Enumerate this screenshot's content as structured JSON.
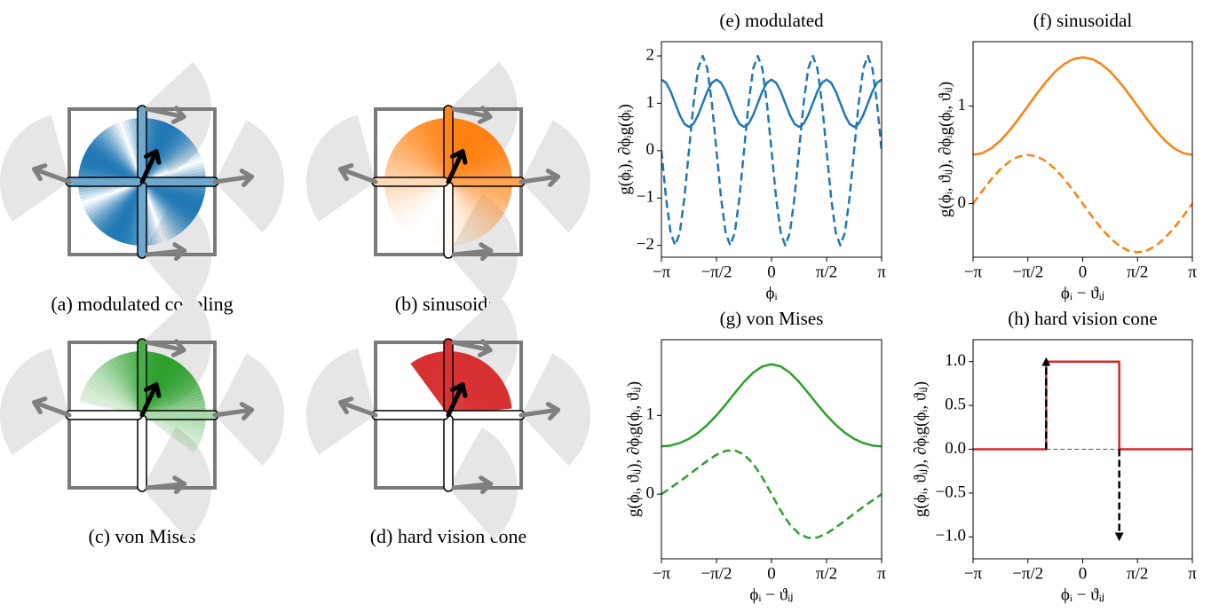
{
  "diagrams": [
    {
      "caption": "(a) modulated coupling"
    },
    {
      "caption": "(b) sinusoidal"
    },
    {
      "caption": "(c) von Mises"
    },
    {
      "caption": "(d) hard vision cone"
    }
  ],
  "chart_data": [
    {
      "type": "line",
      "title": "(e) modulated",
      "xlabel": "ϕᵢ",
      "ylabel": "g(ϕᵢ),  ∂ϕᵢg(ϕᵢ)",
      "x": [
        -3.1416,
        -3.0107,
        -2.8798,
        -2.7489,
        -2.618,
        -2.4871,
        -2.3562,
        -2.2253,
        -2.0944,
        -1.9635,
        -1.8326,
        -1.7017,
        -1.5708,
        -1.4399,
        -1.309,
        -1.1781,
        -1.0472,
        -0.9163,
        -0.7854,
        -0.6545,
        -0.5236,
        -0.3927,
        -0.2618,
        -0.1309,
        0,
        0.1309,
        0.2618,
        0.3927,
        0.5236,
        0.6545,
        0.7854,
        0.9163,
        1.0472,
        1.1781,
        1.309,
        1.4399,
        1.5708,
        1.7017,
        1.8326,
        1.9635,
        2.0944,
        2.2253,
        2.3562,
        2.4871,
        2.618,
        2.7489,
        2.8798,
        3.0107,
        3.1416
      ],
      "xlim": [
        -3.1416,
        3.1416
      ],
      "xticks": [
        {
          "value": -3.1416,
          "label": "−π"
        },
        {
          "value": -1.5708,
          "label": "−π/2"
        },
        0,
        {
          "value": 1.5708,
          "label": "π/2"
        },
        {
          "value": 3.1416,
          "label": "π"
        }
      ],
      "ylim": [
        -2.25,
        2.3
      ],
      "yticks": [
        {
          "value": -2,
          "label": "−2"
        },
        {
          "value": -1,
          "label": "−1"
        },
        0,
        1,
        2
      ],
      "series": [
        {
          "color": "#1f77b4",
          "dashed": false,
          "values": [
            1.5,
            1.433,
            1.25,
            1,
            0.75,
            0.567,
            0.5,
            0.567,
            0.75,
            1,
            1.25,
            1.433,
            1.5,
            1.433,
            1.25,
            1,
            0.75,
            0.567,
            0.5,
            0.567,
            0.75,
            1,
            1.25,
            1.433,
            1.5,
            1.433,
            1.25,
            1,
            0.75,
            0.567,
            0.5,
            0.567,
            0.75,
            1,
            1.25,
            1.433,
            1.5,
            1.433,
            1.25,
            1,
            0.75,
            0.567,
            0.5,
            0.567,
            0.75,
            1,
            1.25,
            1.433,
            1.5
          ]
        },
        {
          "color": "#1f77b4",
          "dashed": true,
          "values": [
            0,
            -1,
            -1.732,
            -2,
            -1.732,
            -1,
            0,
            1,
            1.732,
            2,
            1.732,
            1,
            0,
            -1,
            -1.732,
            -2,
            -1.732,
            -1,
            0,
            1,
            1.732,
            2,
            1.732,
            1,
            0,
            -1,
            -1.732,
            -2,
            -1.732,
            -1,
            0,
            1,
            1.732,
            2,
            1.732,
            1,
            0,
            -1,
            -1.732,
            -2,
            -1.732,
            -1,
            0,
            1,
            1.732,
            2,
            1.732,
            1,
            0
          ]
        }
      ]
    },
    {
      "type": "line",
      "title": "(f) sinusoidal",
      "xlabel": "ϕᵢ − ϑᵢⱼ",
      "ylabel": "g(ϕᵢ, ϑᵢⱼ),  ∂ϕᵢg(ϕᵢ, ϑᵢⱼ)",
      "x": [
        -3.1416,
        -2.8798,
        -2.618,
        -2.3562,
        -2.0944,
        -1.8326,
        -1.5708,
        -1.309,
        -1.0472,
        -0.7854,
        -0.5236,
        -0.2618,
        0,
        0.2618,
        0.5236,
        0.7854,
        1.0472,
        1.309,
        1.5708,
        1.8326,
        2.0944,
        2.3562,
        2.618,
        2.8798,
        3.1416
      ],
      "xlim": [
        -3.1416,
        3.1416
      ],
      "xticks": [
        {
          "value": -3.1416,
          "label": "−π"
        },
        {
          "value": -1.5708,
          "label": "−π/2"
        },
        0,
        {
          "value": 1.5708,
          "label": "π/2"
        },
        {
          "value": 3.1416,
          "label": "π"
        }
      ],
      "ylim": [
        -0.55,
        1.66
      ],
      "yticks": [
        0,
        1
      ],
      "series": [
        {
          "color": "#ff7f0e",
          "dashed": false,
          "values": [
            0.5,
            0.517,
            0.567,
            0.646,
            0.75,
            0.871,
            1,
            1.129,
            1.25,
            1.354,
            1.433,
            1.483,
            1.5,
            1.483,
            1.433,
            1.354,
            1.25,
            1.129,
            1,
            0.871,
            0.75,
            0.646,
            0.567,
            0.517,
            0.5
          ]
        },
        {
          "color": "#ff7f0e",
          "dashed": true,
          "values": [
            0,
            0.129,
            0.25,
            0.354,
            0.433,
            0.483,
            0.5,
            0.483,
            0.433,
            0.354,
            0.25,
            0.129,
            0,
            -0.129,
            -0.25,
            -0.354,
            -0.433,
            -0.483,
            -0.5,
            -0.483,
            -0.433,
            -0.354,
            -0.25,
            -0.129,
            0
          ]
        }
      ]
    },
    {
      "type": "line",
      "title": "(g) von Mises",
      "xlabel": "ϕᵢ − ϑᵢⱼ",
      "ylabel": "g(ϕᵢ, ϑᵢⱼ),  ∂ϕᵢg(ϕᵢ, ϑᵢⱼ)",
      "x": [
        -3.1416,
        -2.8798,
        -2.618,
        -2.3562,
        -2.0944,
        -1.8326,
        -1.5708,
        -1.309,
        -1.0472,
        -0.7854,
        -0.5236,
        -0.2618,
        0,
        0.2618,
        0.5236,
        0.7854,
        1.0472,
        1.309,
        1.5708,
        1.8326,
        2.0944,
        2.3562,
        2.618,
        2.8798,
        3.1416
      ],
      "xlim": [
        -3.1416,
        3.1416
      ],
      "xticks": [
        {
          "value": -3.1416,
          "label": "−π"
        },
        {
          "value": -1.5708,
          "label": "−π/2"
        },
        0,
        {
          "value": 1.5708,
          "label": "π/2"
        },
        {
          "value": 3.1416,
          "label": "π"
        }
      ],
      "ylim": [
        -0.82,
        1.96
      ],
      "yticks": [
        0,
        1
      ],
      "series": [
        {
          "color": "#2ca02c",
          "dashed": false,
          "values": [
            0.607,
            0.617,
            0.649,
            0.702,
            0.779,
            0.879,
            1,
            1.138,
            1.284,
            1.424,
            1.542,
            1.621,
            1.649,
            1.621,
            1.542,
            1.424,
            1.284,
            1.138,
            1,
            0.879,
            0.779,
            0.702,
            0.649,
            0.617,
            0.607
          ]
        },
        {
          "color": "#2ca02c",
          "dashed": true,
          "values": [
            0,
            0.08,
            0.162,
            0.248,
            0.337,
            0.424,
            0.5,
            0.55,
            0.556,
            0.503,
            0.386,
            0.21,
            0,
            -0.21,
            -0.386,
            -0.503,
            -0.556,
            -0.55,
            -0.5,
            -0.424,
            -0.337,
            -0.248,
            -0.162,
            -0.08,
            0
          ]
        }
      ]
    },
    {
      "type": "line",
      "title": "(h) hard vision cone",
      "xlabel": "ϕᵢ − ϑᵢⱼ",
      "ylabel": "g(ϕᵢ, ϑᵢⱼ),  ∂ϕᵢg(ϕᵢ, ϑᵢⱼ)",
      "x": [
        -3.1416,
        -1.0472,
        -1.0472,
        1.0472,
        1.0472,
        3.1416
      ],
      "xlim": [
        -3.1416,
        3.1416
      ],
      "xticks": [
        {
          "value": -3.1416,
          "label": "−π"
        },
        {
          "value": -1.5708,
          "label": "−π/2"
        },
        0,
        {
          "value": 1.5708,
          "label": "π/2"
        },
        {
          "value": 3.1416,
          "label": "π"
        }
      ],
      "ylim": [
        -1.25,
        1.25
      ],
      "yticks": [
        {
          "value": -1,
          "label": "−1.0"
        },
        {
          "value": -0.5,
          "label": "−0.5"
        },
        {
          "value": 0,
          "label": "0.0"
        },
        {
          "value": 0.5,
          "label": "0.5"
        },
        {
          "value": 1,
          "label": "1.0"
        }
      ],
      "series": [
        {
          "color": "#d62728",
          "dashed": false,
          "values": [
            0,
            0,
            1,
            1,
            0,
            0
          ]
        }
      ],
      "impulses": {
        "color": "#000000",
        "x": [
          -1.0472,
          1.0472
        ],
        "values": [
          1,
          -1
        ]
      }
    }
  ]
}
